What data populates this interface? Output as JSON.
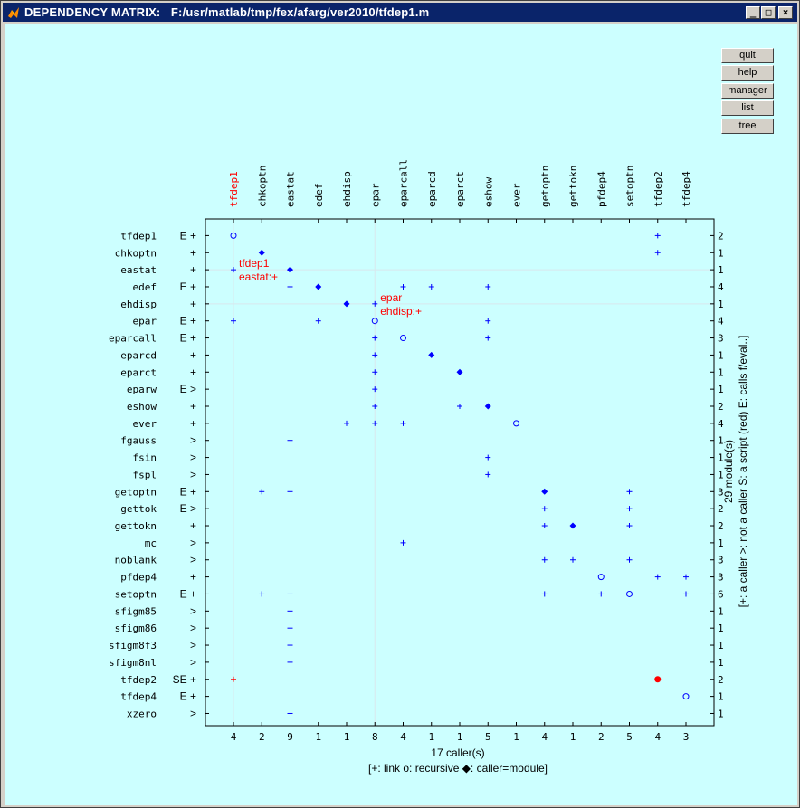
{
  "window": {
    "title": "DEPENDENCY MATRIX:   F:/usr/matlab/tmp/fex/afarg/ver2010/tfdep1.m",
    "controls": [
      "_",
      "□",
      "×"
    ]
  },
  "buttons": [
    {
      "label": "quit"
    },
    {
      "label": "help"
    },
    {
      "label": "manager"
    },
    {
      "label": "list"
    },
    {
      "label": "tree"
    }
  ],
  "colors": {
    "background": "#ccffff",
    "marker": "#0000ff",
    "highlight": "#ff0000",
    "text": "#000000"
  },
  "chart_data": {
    "type": "dependency-matrix",
    "columns": [
      "tfdep1",
      "chkoptn",
      "eastat",
      "edef",
      "ehdisp",
      "epar",
      "eparcall",
      "eparcd",
      "eparct",
      "eshow",
      "ever",
      "getoptn",
      "gettokn",
      "pfdep4",
      "setoptn",
      "tfdep2",
      "tfdep4"
    ],
    "highlight_column": "tfdep1",
    "column_counts": [
      "4",
      "2",
      "9",
      "1",
      "1",
      "8",
      "4",
      "1",
      "1",
      "5",
      "1",
      "4",
      "1",
      "2",
      "5",
      "4",
      "3"
    ],
    "rows": [
      {
        "name": "tfdep1",
        "flags": "E +",
        "count": "2"
      },
      {
        "name": "chkoptn",
        "flags": "+",
        "count": "1"
      },
      {
        "name": "eastat",
        "flags": "+",
        "count": "1"
      },
      {
        "name": "edef",
        "flags": "E +",
        "count": "4"
      },
      {
        "name": "ehdisp",
        "flags": "+",
        "count": "1"
      },
      {
        "name": "epar",
        "flags": "E +",
        "count": "4"
      },
      {
        "name": "eparcall",
        "flags": "E +",
        "count": "3"
      },
      {
        "name": "eparcd",
        "flags": "+",
        "count": "1"
      },
      {
        "name": "eparct",
        "flags": "+",
        "count": "1"
      },
      {
        "name": "eparw",
        "flags": "E >",
        "count": "1"
      },
      {
        "name": "eshow",
        "flags": "+",
        "count": "2"
      },
      {
        "name": "ever",
        "flags": "+",
        "count": "4"
      },
      {
        "name": "fgauss",
        "flags": ">",
        "count": "1"
      },
      {
        "name": "fsin",
        "flags": ">",
        "count": "1"
      },
      {
        "name": "fspl",
        "flags": ">",
        "count": "1"
      },
      {
        "name": "getoptn",
        "flags": "E +",
        "count": "3"
      },
      {
        "name": "gettok",
        "flags": "E >",
        "count": "2"
      },
      {
        "name": "gettokn",
        "flags": "+",
        "count": "2"
      },
      {
        "name": "mc",
        "flags": ">",
        "count": "1"
      },
      {
        "name": "noblank",
        "flags": ">",
        "count": "3"
      },
      {
        "name": "pfdep4",
        "flags": "+",
        "count": "3"
      },
      {
        "name": "setoptn",
        "flags": "E +",
        "count": "6"
      },
      {
        "name": "sfigm85",
        "flags": ">",
        "count": "1"
      },
      {
        "name": "sfigm86",
        "flags": ">",
        "count": "1"
      },
      {
        "name": "sfigm8f3",
        "flags": ">",
        "count": "1"
      },
      {
        "name": "sfigm8nl",
        "flags": ">",
        "count": "1"
      },
      {
        "name": "tfdep2",
        "flags": "SE +",
        "count": "2"
      },
      {
        "name": "tfdep4",
        "flags": "E +",
        "count": "1"
      },
      {
        "name": "xzero",
        "flags": ">",
        "count": "1"
      }
    ],
    "highlight_row": "tfdep2",
    "cells": [
      {
        "row": "tfdep1",
        "col": "tfdep1",
        "type": "recursive"
      },
      {
        "row": "tfdep1",
        "col": "tfdep2",
        "type": "link"
      },
      {
        "row": "chkoptn",
        "col": "chkoptn",
        "type": "module"
      },
      {
        "row": "chkoptn",
        "col": "tfdep2",
        "type": "link"
      },
      {
        "row": "eastat",
        "col": "tfdep1",
        "type": "link"
      },
      {
        "row": "eastat",
        "col": "eastat",
        "type": "module"
      },
      {
        "row": "edef",
        "col": "eastat",
        "type": "link"
      },
      {
        "row": "edef",
        "col": "edef",
        "type": "module"
      },
      {
        "row": "edef",
        "col": "eparcall",
        "type": "link"
      },
      {
        "row": "edef",
        "col": "eparcd",
        "type": "link"
      },
      {
        "row": "edef",
        "col": "eshow",
        "type": "link"
      },
      {
        "row": "ehdisp",
        "col": "ehdisp",
        "type": "module"
      },
      {
        "row": "ehdisp",
        "col": "epar",
        "type": "link"
      },
      {
        "row": "epar",
        "col": "tfdep1",
        "type": "link"
      },
      {
        "row": "epar",
        "col": "edef",
        "type": "link"
      },
      {
        "row": "epar",
        "col": "epar",
        "type": "recursive"
      },
      {
        "row": "epar",
        "col": "eshow",
        "type": "link"
      },
      {
        "row": "eparcall",
        "col": "epar",
        "type": "link"
      },
      {
        "row": "eparcall",
        "col": "eparcall",
        "type": "recursive"
      },
      {
        "row": "eparcall",
        "col": "eshow",
        "type": "link"
      },
      {
        "row": "eparcd",
        "col": "epar",
        "type": "link"
      },
      {
        "row": "eparcd",
        "col": "eparcd",
        "type": "module"
      },
      {
        "row": "eparct",
        "col": "epar",
        "type": "link"
      },
      {
        "row": "eparct",
        "col": "eparct",
        "type": "module"
      },
      {
        "row": "eparw",
        "col": "epar",
        "type": "link"
      },
      {
        "row": "eshow",
        "col": "epar",
        "type": "link"
      },
      {
        "row": "eshow",
        "col": "eparct",
        "type": "link"
      },
      {
        "row": "eshow",
        "col": "eshow",
        "type": "module"
      },
      {
        "row": "ever",
        "col": "ehdisp",
        "type": "link"
      },
      {
        "row": "ever",
        "col": "epar",
        "type": "link"
      },
      {
        "row": "ever",
        "col": "eparcall",
        "type": "link"
      },
      {
        "row": "ever",
        "col": "ever",
        "type": "recursive"
      },
      {
        "row": "fgauss",
        "col": "eastat",
        "type": "link"
      },
      {
        "row": "fsin",
        "col": "eshow",
        "type": "link"
      },
      {
        "row": "fspl",
        "col": "eshow",
        "type": "link"
      },
      {
        "row": "getoptn",
        "col": "chkoptn",
        "type": "link"
      },
      {
        "row": "getoptn",
        "col": "eastat",
        "type": "link"
      },
      {
        "row": "getoptn",
        "col": "getoptn",
        "type": "module"
      },
      {
        "row": "getoptn",
        "col": "setoptn",
        "type": "link"
      },
      {
        "row": "gettok",
        "col": "getoptn",
        "type": "link"
      },
      {
        "row": "gettok",
        "col": "setoptn",
        "type": "link"
      },
      {
        "row": "gettokn",
        "col": "getoptn",
        "type": "link"
      },
      {
        "row": "gettokn",
        "col": "gettokn",
        "type": "module"
      },
      {
        "row": "gettokn",
        "col": "setoptn",
        "type": "link"
      },
      {
        "row": "mc",
        "col": "eparcall",
        "type": "link"
      },
      {
        "row": "noblank",
        "col": "getoptn",
        "type": "link"
      },
      {
        "row": "noblank",
        "col": "gettokn",
        "type": "link"
      },
      {
        "row": "noblank",
        "col": "setoptn",
        "type": "link"
      },
      {
        "row": "pfdep4",
        "col": "pfdep4",
        "type": "recursive"
      },
      {
        "row": "pfdep4",
        "col": "tfdep2",
        "type": "link"
      },
      {
        "row": "pfdep4",
        "col": "tfdep4",
        "type": "link"
      },
      {
        "row": "setoptn",
        "col": "chkoptn",
        "type": "link"
      },
      {
        "row": "setoptn",
        "col": "eastat",
        "type": "link"
      },
      {
        "row": "setoptn",
        "col": "getoptn",
        "type": "link"
      },
      {
        "row": "setoptn",
        "col": "pfdep4",
        "type": "link"
      },
      {
        "row": "setoptn",
        "col": "setoptn",
        "type": "recursive"
      },
      {
        "row": "setoptn",
        "col": "tfdep4",
        "type": "link"
      },
      {
        "row": "sfigm85",
        "col": "eastat",
        "type": "link"
      },
      {
        "row": "sfigm86",
        "col": "eastat",
        "type": "link"
      },
      {
        "row": "sfigm8f3",
        "col": "eastat",
        "type": "link"
      },
      {
        "row": "sfigm8nl",
        "col": "eastat",
        "type": "link"
      },
      {
        "row": "tfdep2",
        "col": "tfdep1",
        "type": "link-red"
      },
      {
        "row": "tfdep2",
        "col": "tfdep2",
        "type": "module-red"
      },
      {
        "row": "tfdep4",
        "col": "tfdep4",
        "type": "recursive"
      },
      {
        "row": "xzero",
        "col": "eastat",
        "type": "link"
      }
    ],
    "crosshairs": [
      {
        "row": "eastat",
        "col": "tfdep1",
        "caller": "tfdep1",
        "callee": "eastat:+"
      },
      {
        "row": "ehdisp",
        "col": "epar",
        "caller": "epar",
        "callee": "ehdisp:+"
      }
    ],
    "xlabel": "17 caller(s)",
    "legend": "[+: link  o: recursive  ◆: caller=module]",
    "right_label_1": "29 module(s)",
    "right_label_2": "[+: a caller  >: not a caller  S: a script (red)  E: calls f/eval..]"
  }
}
